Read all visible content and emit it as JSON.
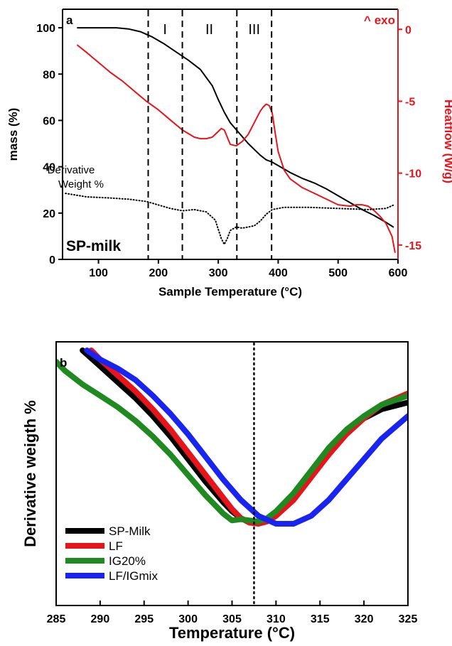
{
  "chart_data": [
    {
      "type": "line",
      "panel": "a",
      "sample_label": "SP-milk",
      "xlabel": "Sample Temperature (°C)",
      "ylabel": "mass (%)",
      "y2label": "Heatflow (W/g)",
      "exo_label": "^ exo",
      "xlim": [
        40,
        600
      ],
      "ylim": [
        0,
        108
      ],
      "y2lim": [
        -16,
        1.4
      ],
      "xticks": [
        100,
        200,
        300,
        400,
        500,
        600
      ],
      "yticks": [
        0,
        20,
        40,
        60,
        80,
        100
      ],
      "y2ticks": [
        -15,
        -10,
        -5,
        0
      ],
      "boundaries": [
        183,
        240,
        331,
        389
      ],
      "regions": [
        {
          "label": "I",
          "x": 211
        },
        {
          "label": "II",
          "x": 285
        },
        {
          "label": "III",
          "x": 360
        }
      ],
      "annotation": [
        "Derivative",
        "Weight %"
      ],
      "grid": false,
      "series": [
        {
          "name": "mass",
          "axis": "left",
          "color": "#000000",
          "style": "solid",
          "x": [
            65,
            100,
            130,
            150,
            170,
            190,
            210,
            230,
            250,
            270,
            290,
            300,
            310,
            320,
            330,
            340,
            350,
            360,
            370,
            380,
            390,
            400,
            420,
            440,
            460,
            480,
            500,
            520,
            540,
            560,
            580,
            592
          ],
          "y": [
            100,
            100,
            100,
            99.5,
            98.3,
            96,
            93,
            89.5,
            86,
            82,
            75,
            69,
            63.5,
            59,
            56,
            53,
            50,
            47.5,
            45,
            43,
            42,
            40.5,
            37.5,
            35,
            33,
            30.5,
            27.5,
            24.5,
            21.5,
            19,
            16,
            14
          ]
        },
        {
          "name": "heatflow",
          "axis": "right",
          "color": "#e8141b",
          "style": "solid",
          "x": [
            65,
            80,
            100,
            120,
            140,
            160,
            180,
            200,
            220,
            240,
            260,
            270,
            280,
            290,
            300,
            305,
            310,
            315,
            320,
            330,
            340,
            350,
            360,
            370,
            375,
            380,
            385,
            390,
            395,
            400,
            410,
            420,
            440,
            460,
            480,
            500,
            520,
            530,
            540,
            550,
            560,
            570,
            580,
            590,
            595
          ],
          "y": [
            -1.1,
            -1.6,
            -2.3,
            -3,
            -3.6,
            -4.3,
            -5,
            -5.6,
            -6.3,
            -7,
            -7.5,
            -7.6,
            -7.6,
            -7.5,
            -7.1,
            -6.9,
            -7,
            -7.5,
            -8,
            -8.1,
            -7.8,
            -7.3,
            -6.5,
            -5.7,
            -5.4,
            -5.2,
            -5.3,
            -5.8,
            -7.2,
            -8.5,
            -9.8,
            -10.4,
            -11,
            -11.4,
            -11.8,
            -12.2,
            -12.3,
            -12.2,
            -12.2,
            -12.3,
            -12.6,
            -13,
            -13.5,
            -14.4,
            -15.5
          ]
        },
        {
          "name": "derivative weight",
          "axis": "left",
          "color": "#000000",
          "style": "dotted",
          "x": [
            45,
            80,
            120,
            150,
            180,
            200,
            220,
            240,
            260,
            280,
            295,
            300,
            305,
            310,
            315,
            320,
            330,
            340,
            350,
            360,
            370,
            380,
            390,
            410,
            450,
            500,
            550,
            580,
            593
          ],
          "y": [
            28.5,
            27,
            26.5,
            26,
            25,
            23.5,
            22,
            21,
            21.5,
            20.5,
            17,
            13,
            9,
            6.5,
            9,
            12.5,
            14,
            13.5,
            14,
            14.5,
            16.5,
            19.5,
            21.5,
            22.5,
            22.5,
            22,
            21.5,
            22,
            23.5
          ]
        }
      ]
    },
    {
      "type": "line",
      "panel": "b",
      "xlabel": "Temperature (°C)",
      "ylabel": "Derivative weigth %",
      "xlim": [
        285,
        325
      ],
      "ylim": [
        0,
        1
      ],
      "xticks": [
        285,
        290,
        295,
        300,
        305,
        310,
        315,
        320,
        325
      ],
      "yticks": [],
      "reference_line_x": 307.5,
      "grid": false,
      "legend_position": "bottom-left",
      "series": [
        {
          "name": "SP-Milk",
          "color": "#000000",
          "x": [
            288,
            290,
            292,
            294,
            296,
            298,
            300,
            302,
            304,
            305,
            306,
            307,
            308,
            309,
            310,
            312,
            314,
            316,
            318,
            320,
            322,
            325
          ],
          "y": [
            1.0,
            0.93,
            0.86,
            0.79,
            0.71,
            0.62,
            0.52,
            0.42,
            0.33,
            0.29,
            0.26,
            0.24,
            0.24,
            0.25,
            0.28,
            0.36,
            0.46,
            0.56,
            0.64,
            0.7,
            0.74,
            0.77
          ]
        },
        {
          "name": "LF",
          "color": "#e8141b",
          "x": [
            289,
            290,
            292,
            294,
            296,
            298,
            300,
            302,
            304,
            305,
            306,
            307,
            308,
            309,
            310,
            312,
            314,
            316,
            318,
            320,
            322,
            325
          ],
          "y": [
            1.0,
            0.96,
            0.89,
            0.82,
            0.74,
            0.65,
            0.55,
            0.45,
            0.35,
            0.3,
            0.26,
            0.24,
            0.235,
            0.245,
            0.27,
            0.34,
            0.44,
            0.54,
            0.63,
            0.7,
            0.76,
            0.81
          ]
        },
        {
          "name": "IG20%",
          "color": "#1f8a1f",
          "x": [
            285,
            286,
            288,
            290,
            292,
            294,
            296,
            298,
            300,
            302,
            304,
            305,
            306,
            307,
            308,
            309,
            310,
            312,
            314,
            316,
            318,
            320,
            322,
            325
          ],
          "y": [
            0.95,
            0.91,
            0.85,
            0.8,
            0.75,
            0.69,
            0.62,
            0.54,
            0.45,
            0.36,
            0.28,
            0.25,
            0.255,
            0.25,
            0.245,
            0.26,
            0.29,
            0.37,
            0.47,
            0.57,
            0.65,
            0.71,
            0.76,
            0.8
          ]
        },
        {
          "name": "LF/IGmix",
          "color": "#1a24f0",
          "x": [
            288.5,
            290,
            292,
            294,
            296,
            298,
            300,
            302,
            304,
            306,
            308,
            310,
            312,
            314,
            316,
            318,
            320,
            322,
            325
          ],
          "y": [
            1.0,
            0.96,
            0.92,
            0.87,
            0.8,
            0.72,
            0.63,
            0.53,
            0.43,
            0.34,
            0.27,
            0.235,
            0.235,
            0.27,
            0.34,
            0.43,
            0.52,
            0.61,
            0.71
          ]
        }
      ]
    }
  ]
}
